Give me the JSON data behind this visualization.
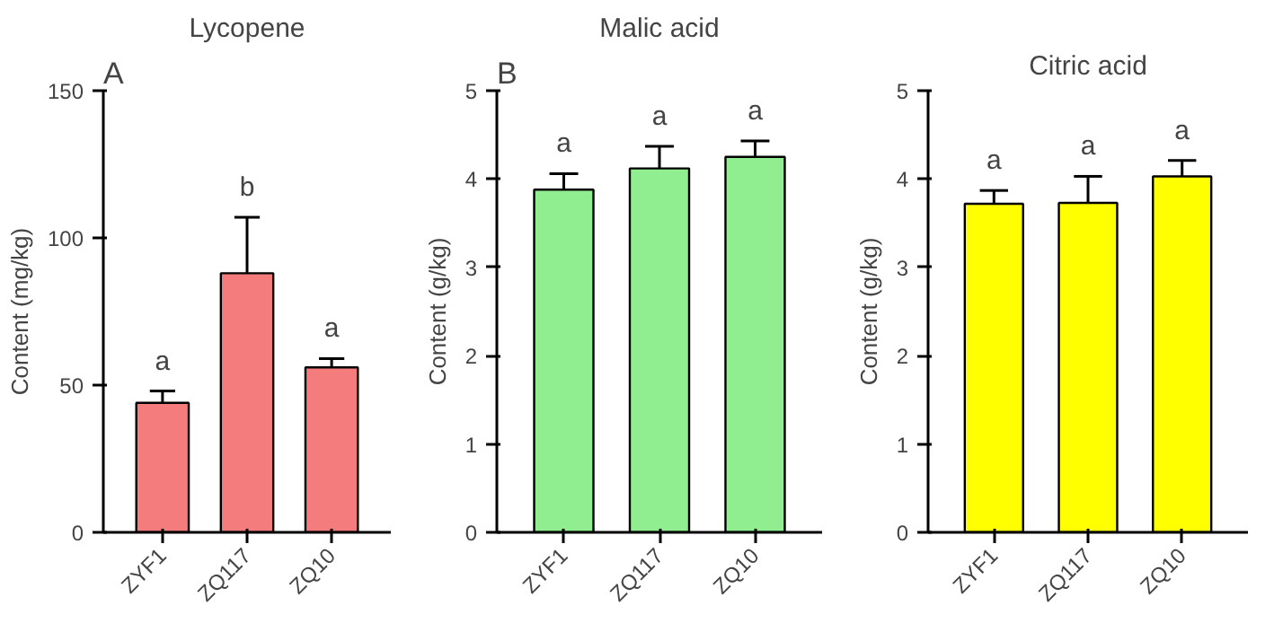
{
  "chart_data": [
    {
      "type": "bar",
      "title": "Lycopene",
      "ylabel": "Content (mg/kg)",
      "categories": [
        "ZYF1",
        "ZQ117",
        "ZQ10"
      ],
      "values": [
        44,
        88,
        56
      ],
      "errors": [
        4,
        19,
        3
      ],
      "colors": [
        "#f47c7c",
        "#f47c7c",
        "#f47c7c"
      ],
      "ylim": [
        0,
        150
      ],
      "yticks": [
        0,
        50,
        100,
        150
      ],
      "grid": false,
      "annotations": [
        "A",
        {
          "text": "a",
          "x": "ZYF1",
          "y": 48
        },
        {
          "text": "b",
          "x": "ZQ117",
          "y": 107
        },
        {
          "text": "a",
          "x": "ZQ10",
          "y": 59
        }
      ]
    },
    {
      "type": "bar",
      "title": "Malic acid",
      "ylabel": "Content (g/kg)",
      "categories": [
        "ZYF1",
        "ZQ117",
        "ZQ10"
      ],
      "values": [
        3.88,
        4.12,
        4.25
      ],
      "errors": [
        0.18,
        0.25,
        0.18
      ],
      "colors": [
        "#90ee90",
        "#90ee90",
        "#90ee90"
      ],
      "ylim": [
        0,
        5
      ],
      "yticks": [
        0,
        1,
        2,
        3,
        4,
        5
      ],
      "grid": false,
      "annotations": [
        "B",
        {
          "text": "a",
          "x": "ZYF1",
          "y": 4.06
        },
        {
          "text": "a",
          "x": "ZQ117",
          "y": 4.37
        },
        {
          "text": "a",
          "x": "ZQ10",
          "y": 4.43
        }
      ]
    },
    {
      "type": "bar",
      "title": "Citric acid",
      "ylabel": "Content (g/kg)",
      "categories": [
        "ZYF1",
        "ZQ117",
        "ZQ10"
      ],
      "values": [
        3.72,
        3.73,
        4.03
      ],
      "errors": [
        0.15,
        0.3,
        0.18
      ],
      "colors": [
        "#ffff00",
        "#ffff00",
        "#ffff00"
      ],
      "ylim": [
        0,
        5
      ],
      "yticks": [
        0,
        1,
        2,
        3,
        4,
        5
      ],
      "grid": false,
      "annotations": [
        {
          "text": "a",
          "x": "ZYF1",
          "y": 3.87
        },
        {
          "text": "a",
          "x": "ZQ117",
          "y": 4.03
        },
        {
          "text": "a",
          "x": "ZQ10",
          "y": 4.21
        }
      ]
    }
  ]
}
